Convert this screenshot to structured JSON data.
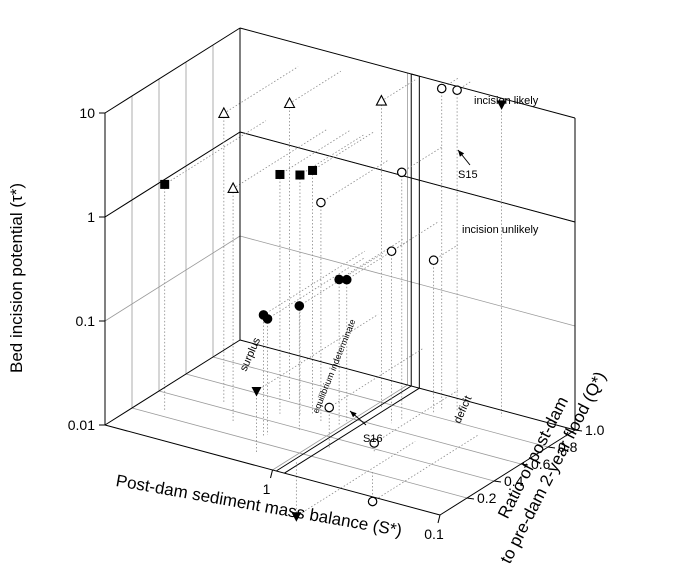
{
  "chart_data": {
    "type": "scatter",
    "dimensions": "3d",
    "axes": {
      "x": {
        "label": "Post-dam sediment mass balance (S*)",
        "scale": "log",
        "range": [
          10,
          0.1
        ],
        "ticks": [
          "1",
          "0.1"
        ]
      },
      "y": {
        "label_line1": "Ratio of post-dam",
        "label_line2": "to pre-dam 2-year flood (Q*)",
        "scale": "linear",
        "range": [
          0,
          1.0
        ],
        "ticks": [
          "0.2",
          "0.4",
          "0.6",
          "0.8",
          "1.0"
        ]
      },
      "z": {
        "label": "Bed incision potential (τ*)",
        "scale": "log",
        "range": [
          0.01,
          10
        ],
        "ticks": [
          "0.01",
          "0.1",
          "1",
          "10"
        ]
      }
    },
    "annotations": {
      "incision_likely": "incision likely",
      "incision_unlikely": "incision unlikely",
      "surplus": "surplus",
      "deficit": "deficit",
      "equilibrium": "equilibrium indeterminate",
      "s15": "S15",
      "s16": "S16"
    },
    "series": [
      {
        "marker": "open-triangle",
        "points": [
          {
            "x": 4.5,
            "y": 0.45,
            "z": 6
          },
          {
            "x": 3,
            "y": 0.3,
            "z": 1.8
          },
          {
            "x": 2.5,
            "y": 0.62,
            "z": 7
          },
          {
            "x": 0.9,
            "y": 0.75,
            "z": 9
          }
        ]
      },
      {
        "marker": "filled-square",
        "points": [
          {
            "x": 7,
            "y": 0.25,
            "z": 1.5
          },
          {
            "x": 2.2,
            "y": 0.48,
            "z": 2
          },
          {
            "x": 1.8,
            "y": 0.52,
            "z": 2
          },
          {
            "x": 1.6,
            "y": 0.55,
            "z": 2.2
          }
        ]
      },
      {
        "marker": "open-circle",
        "points": [
          {
            "x": 1.3,
            "y": 0.5,
            "z": 1.3
          },
          {
            "x": 0.5,
            "y": 0.88,
            "z": 12
          },
          {
            "x": 0.42,
            "y": 0.9,
            "z": 12
          },
          {
            "x": 0.62,
            "y": 0.7,
            "z": 2.4
          },
          {
            "x": 0.65,
            "y": 0.65,
            "z": 0.45
          },
          {
            "x": 0.5,
            "y": 0.82,
            "z": 0.3
          },
          {
            "x": 0.8,
            "y": 0.3,
            "z": 0.025
          },
          {
            "x": 0.5,
            "y": 0.38,
            "z": 0.012
          },
          {
            "x": 0.38,
            "y": 0.22,
            "z": 0.005
          }
        ]
      },
      {
        "marker": "filled-circle",
        "points": [
          {
            "x": 1.8,
            "y": 0.25,
            "z": 0.15
          },
          {
            "x": 1.8,
            "y": 0.28,
            "z": 0.13
          },
          {
            "x": 1.4,
            "y": 0.38,
            "z": 0.16
          },
          {
            "x": 1.05,
            "y": 0.52,
            "z": 0.25
          },
          {
            "x": 1.0,
            "y": 0.55,
            "z": 0.24
          }
        ]
      },
      {
        "marker": "filled-triangle-down",
        "points": [
          {
            "x": 0.25,
            "y": 0.95,
            "z": 10
          },
          {
            "x": 1.5,
            "y": 0.1,
            "z": 0.04
          },
          {
            "x": 0.9,
            "y": 0.12,
            "z": 0.003
          }
        ]
      }
    ]
  }
}
